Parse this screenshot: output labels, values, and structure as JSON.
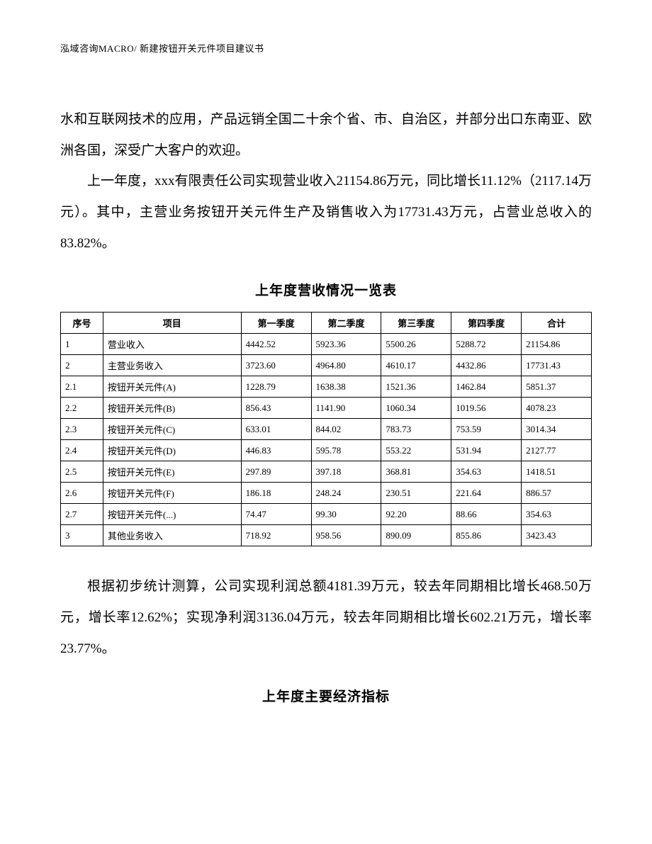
{
  "header": "泓域咨询MACRO/   新建按钮开关元件项目建议书",
  "body": {
    "para1": "水和互联网技术的应用，产品远销全国二十余个省、市、自治区，并部分出口东南亚、欧洲各国，深受广大客户的欢迎。",
    "para2": "上一年度，xxx有限责任公司实现营业收入21154.86万元，同比增长11.12%（2117.14万元）。其中，主营业务按钮开关元件生产及销售收入为17731.43万元，占营业总收入的83.82%。",
    "para3": "根据初步统计测算，公司实现利润总额4181.39万元，较去年同期相比增长468.50万元，增长率12.62%；实现净利润3136.04万元，较去年同期相比增长602.21万元，增长率23.77%。"
  },
  "tableTitle1": "上年度营收情况一览表",
  "tableTitle2": "上年度主要经济指标",
  "table": {
    "headers": [
      "序号",
      "项目",
      "第一季度",
      "第二季度",
      "第三季度",
      "第四季度",
      "合计"
    ],
    "rows": [
      [
        "1",
        "营业收入",
        "4442.52",
        "5923.36",
        "5500.26",
        "5288.72",
        "21154.86"
      ],
      [
        "2",
        "主营业务收入",
        "3723.60",
        "4964.80",
        "4610.17",
        "4432.86",
        "17731.43"
      ],
      [
        "2.1",
        "按钮开关元件(A)",
        "1228.79",
        "1638.38",
        "1521.36",
        "1462.84",
        "5851.37"
      ],
      [
        "2.2",
        "按钮开关元件(B)",
        "856.43",
        "1141.90",
        "1060.34",
        "1019.56",
        "4078.23"
      ],
      [
        "2.3",
        "按钮开关元件(C)",
        "633.01",
        "844.02",
        "783.73",
        "753.59",
        "3014.34"
      ],
      [
        "2.4",
        "按钮开关元件(D)",
        "446.83",
        "595.78",
        "553.22",
        "531.94",
        "2127.77"
      ],
      [
        "2.5",
        "按钮开关元件(E)",
        "297.89",
        "397.18",
        "368.81",
        "354.63",
        "1418.51"
      ],
      [
        "2.6",
        "按钮开关元件(F)",
        "186.18",
        "248.24",
        "230.51",
        "221.64",
        "886.57"
      ],
      [
        "2.7",
        "按钮开关元件(...)",
        "74.47",
        "99.30",
        "92.20",
        "88.66",
        "354.63"
      ],
      [
        "3",
        "其他业务收入",
        "718.92",
        "958.56",
        "890.09",
        "855.86",
        "3423.43"
      ]
    ]
  }
}
